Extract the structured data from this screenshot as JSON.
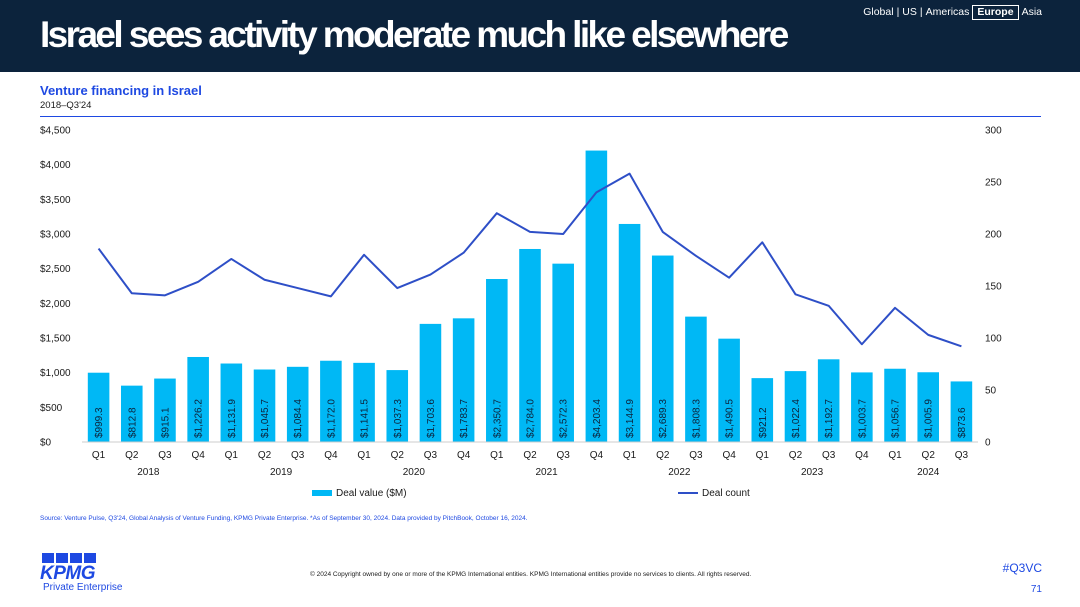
{
  "header": {
    "title": "Israel sees activity moderate much like elsewhere",
    "regions": [
      "Global",
      "US",
      "Americas",
      "Europe",
      "Asia"
    ],
    "active_region": "Europe"
  },
  "chart_title": "Venture financing in Israel",
  "chart_subtitle": "2018–Q3'24",
  "source": "Source: Venture Pulse, Q3'24, Global Analysis of Venture Funding, KPMG Private Enterprise. *As of September 30, 2024. Data provided by PitchBook, October 16, 2024.",
  "footer": {
    "logo_text": "KPMG",
    "logo_sub": "Private Enterprise",
    "copyright": "© 2024 Copyright owned by one or more of the KPMG International entities. KPMG International entities provide no services to clients. All rights reserved.",
    "hashtag": "#Q3VC",
    "page_number": "71"
  },
  "colors": {
    "bar": "#00b8f5",
    "line": "#2e4fc7",
    "header_bg": "#0c233c",
    "accent": "#1e49e2"
  },
  "chart_data": {
    "type": "bar",
    "title": "Venture financing in Israel",
    "categories": [
      "Q1",
      "Q2",
      "Q3",
      "Q4",
      "Q1",
      "Q2",
      "Q3",
      "Q4",
      "Q1",
      "Q2",
      "Q3",
      "Q4",
      "Q1",
      "Q2",
      "Q3",
      "Q4",
      "Q1",
      "Q2",
      "Q3",
      "Q4",
      "Q1",
      "Q2",
      "Q3",
      "Q4",
      "Q1",
      "Q2",
      "Q3"
    ],
    "years": [
      "2018",
      "2019",
      "2020",
      "2021",
      "2022",
      "2023",
      "2024"
    ],
    "series": [
      {
        "name": "Deal value ($M)",
        "type": "bar",
        "axis": "left",
        "values": [
          999.3,
          812.8,
          915.1,
          1226.2,
          1131.9,
          1045.7,
          1084.4,
          1172.0,
          1141.5,
          1037.3,
          1703.6,
          1783.7,
          2350.7,
          2784.0,
          2572.3,
          4203.4,
          3144.9,
          2689.3,
          1808.3,
          1490.5,
          921.2,
          1022.4,
          1192.7,
          1003.7,
          1056.7,
          1005.9,
          873.6
        ],
        "labels": [
          "$999.3",
          "$812.8",
          "$915.1",
          "$1,226.2",
          "$1,131.9",
          "$1,045.7",
          "$1,084.4",
          "$1,172.0",
          "$1,141.5",
          "$1,037.3",
          "$1,703.6",
          "$1,783.7",
          "$2,350.7",
          "$2,784.0",
          "$2,572.3",
          "$4,203.4",
          "$3,144.9",
          "$2,689.3",
          "$1,808.3",
          "$1,490.5",
          "$921.2",
          "$1,022.4",
          "$1,192.7",
          "$1,003.7",
          "$1,056.7",
          "$1,005.9",
          "$873.6"
        ]
      },
      {
        "name": "Deal count",
        "type": "line",
        "axis": "right",
        "values": [
          186,
          143,
          141,
          154,
          176,
          156,
          148,
          140,
          180,
          148,
          161,
          182,
          220,
          202,
          200,
          240,
          258,
          202,
          179,
          158,
          192,
          142,
          131,
          94,
          129,
          103,
          92
        ]
      }
    ],
    "y_left": {
      "min": 0,
      "max": 4500,
      "ticks": [
        "$0",
        "$500",
        "$1,000",
        "$1,500",
        "$2,000",
        "$2,500",
        "$3,000",
        "$3,500",
        "$4,000",
        "$4,500"
      ]
    },
    "y_right": {
      "min": 0,
      "max": 300,
      "ticks": [
        "0",
        "50",
        "100",
        "150",
        "200",
        "250",
        "300"
      ]
    },
    "legend": [
      "Deal value ($M)",
      "Deal count"
    ],
    "legend_position": "bottom"
  }
}
